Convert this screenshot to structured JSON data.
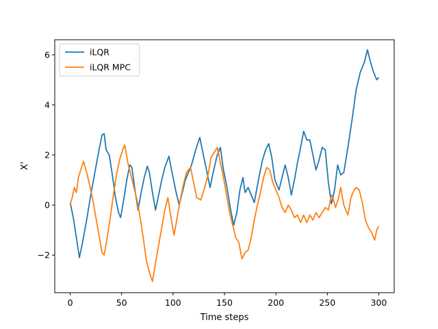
{
  "chart_data": {
    "type": "line",
    "title": "",
    "xlabel": "Time steps",
    "ylabel": "X'",
    "xlim": [
      -15,
      315
    ],
    "ylim": [
      -3.5,
      6.6
    ],
    "xticks": [
      0,
      50,
      100,
      150,
      200,
      250,
      300
    ],
    "yticks": [
      -2,
      0,
      2,
      4,
      6
    ],
    "xtick_labels": [
      "0",
      "50",
      "100",
      "150",
      "200",
      "250",
      "300"
    ],
    "ytick_labels": [
      "−2",
      "0",
      "2",
      "4",
      "6"
    ],
    "grid": false,
    "legend_position": "top-left",
    "series": [
      {
        "name": "iLQR",
        "color": "#1f77b4",
        "points": [
          [
            0,
            0.1
          ],
          [
            3,
            -0.5
          ],
          [
            6,
            -1.3
          ],
          [
            9,
            -2.1
          ],
          [
            12,
            -1.5
          ],
          [
            16,
            -0.6
          ],
          [
            20,
            0.4
          ],
          [
            24,
            1.3
          ],
          [
            28,
            2.2
          ],
          [
            31,
            2.8
          ],
          [
            33,
            2.85
          ],
          [
            35,
            2.2
          ],
          [
            38,
            2.0
          ],
          [
            41,
            1.2
          ],
          [
            44,
            0.3
          ],
          [
            47,
            -0.3
          ],
          [
            49,
            -0.5
          ],
          [
            52,
            0.2
          ],
          [
            55,
            1.0
          ],
          [
            58,
            1.6
          ],
          [
            60,
            1.5
          ],
          [
            63,
            0.6
          ],
          [
            66,
            -0.2
          ],
          [
            69,
            0.5
          ],
          [
            72,
            1.1
          ],
          [
            75,
            1.55
          ],
          [
            77,
            1.3
          ],
          [
            80,
            0.5
          ],
          [
            83,
            -0.2
          ],
          [
            86,
            0.4
          ],
          [
            89,
            1.0
          ],
          [
            92,
            1.5
          ],
          [
            96,
            1.95
          ],
          [
            99,
            1.3
          ],
          [
            103,
            0.5
          ],
          [
            106,
            0.0
          ],
          [
            109,
            0.5
          ],
          [
            112,
            1.0
          ],
          [
            115,
            1.3
          ],
          [
            118,
            1.6
          ],
          [
            122,
            2.2
          ],
          [
            126,
            2.7
          ],
          [
            129,
            2.1
          ],
          [
            133,
            1.3
          ],
          [
            136,
            0.7
          ],
          [
            139,
            1.3
          ],
          [
            143,
            2.0
          ],
          [
            146,
            2.3
          ],
          [
            149,
            1.4
          ],
          [
            152,
            0.8
          ],
          [
            156,
            -0.2
          ],
          [
            159,
            -0.8
          ],
          [
            162,
            -0.3
          ],
          [
            165,
            0.6
          ],
          [
            168,
            1.1
          ],
          [
            170,
            0.5
          ],
          [
            173,
            0.7
          ],
          [
            176,
            0.4
          ],
          [
            179,
            0.1
          ],
          [
            183,
            1.0
          ],
          [
            187,
            1.8
          ],
          [
            190,
            2.2
          ],
          [
            193,
            2.45
          ],
          [
            196,
            1.9
          ],
          [
            199,
            1.0
          ],
          [
            203,
            0.6
          ],
          [
            206,
            1.1
          ],
          [
            209,
            1.6
          ],
          [
            212,
            1.1
          ],
          [
            215,
            0.4
          ],
          [
            218,
            1.0
          ],
          [
            221,
            1.7
          ],
          [
            224,
            2.3
          ],
          [
            227,
            2.95
          ],
          [
            230,
            2.6
          ],
          [
            233,
            2.6
          ],
          [
            236,
            2.0
          ],
          [
            239,
            1.4
          ],
          [
            242,
            1.8
          ],
          [
            245,
            2.3
          ],
          [
            248,
            2.2
          ],
          [
            251,
            0.9
          ],
          [
            254,
            0.05
          ],
          [
            257,
            0.6
          ],
          [
            260,
            1.6
          ],
          [
            263,
            1.2
          ],
          [
            266,
            1.3
          ],
          [
            270,
            2.3
          ],
          [
            274,
            3.4
          ],
          [
            278,
            4.6
          ],
          [
            282,
            5.3
          ],
          [
            286,
            5.7
          ],
          [
            289,
            6.2
          ],
          [
            292,
            5.7
          ],
          [
            295,
            5.3
          ],
          [
            298,
            5.0
          ],
          [
            300,
            5.1
          ]
        ]
      },
      {
        "name": "iLQR MPC",
        "color": "#ff7f0e",
        "points": [
          [
            0,
            0.0
          ],
          [
            2,
            0.3
          ],
          [
            4,
            0.7
          ],
          [
            6,
            0.5
          ],
          [
            8,
            1.1
          ],
          [
            11,
            1.5
          ],
          [
            13,
            1.75
          ],
          [
            16,
            1.3
          ],
          [
            19,
            0.8
          ],
          [
            22,
            0.2
          ],
          [
            25,
            -0.5
          ],
          [
            28,
            -1.2
          ],
          [
            31,
            -1.9
          ],
          [
            33,
            -2.0
          ],
          [
            36,
            -1.3
          ],
          [
            39,
            -0.5
          ],
          [
            42,
            0.4
          ],
          [
            45,
            1.2
          ],
          [
            48,
            1.8
          ],
          [
            51,
            2.2
          ],
          [
            53,
            2.4
          ],
          [
            56,
            1.7
          ],
          [
            59,
            1.2
          ],
          [
            62,
            0.7
          ],
          [
            65,
            0.2
          ],
          [
            68,
            -0.5
          ],
          [
            71,
            -1.3
          ],
          [
            74,
            -2.2
          ],
          [
            77,
            -2.7
          ],
          [
            80,
            -3.05
          ],
          [
            83,
            -2.3
          ],
          [
            86,
            -1.6
          ],
          [
            89,
            -0.9
          ],
          [
            92,
            -0.2
          ],
          [
            95,
            0.3
          ],
          [
            98,
            -0.5
          ],
          [
            101,
            -1.2
          ],
          [
            104,
            -0.5
          ],
          [
            107,
            0.2
          ],
          [
            110,
            0.8
          ],
          [
            113,
            1.3
          ],
          [
            117,
            1.5
          ],
          [
            120,
            0.9
          ],
          [
            123,
            0.3
          ],
          [
            127,
            0.2
          ],
          [
            130,
            0.6
          ],
          [
            134,
            1.2
          ],
          [
            137,
            1.9
          ],
          [
            140,
            2.1
          ],
          [
            143,
            2.3
          ],
          [
            146,
            1.7
          ],
          [
            149,
            1.1
          ],
          [
            152,
            0.4
          ],
          [
            155,
            -0.3
          ],
          [
            158,
            -0.8
          ],
          [
            161,
            -1.3
          ],
          [
            164,
            -1.5
          ],
          [
            167,
            -2.15
          ],
          [
            170,
            -1.9
          ],
          [
            173,
            -1.8
          ],
          [
            176,
            -1.3
          ],
          [
            179,
            -0.6
          ],
          [
            182,
            0.0
          ],
          [
            185,
            0.5
          ],
          [
            188,
            1.1
          ],
          [
            191,
            1.5
          ],
          [
            194,
            1.4
          ],
          [
            197,
            0.9
          ],
          [
            200,
            0.6
          ],
          [
            203,
            0.3
          ],
          [
            206,
            -0.1
          ],
          [
            209,
            -0.3
          ],
          [
            212,
            0.0
          ],
          [
            215,
            -0.2
          ],
          [
            218,
            -0.5
          ],
          [
            221,
            -0.4
          ],
          [
            224,
            -0.7
          ],
          [
            227,
            -0.4
          ],
          [
            230,
            -0.7
          ],
          [
            233,
            -0.4
          ],
          [
            236,
            -0.6
          ],
          [
            239,
            -0.3
          ],
          [
            242,
            -0.5
          ],
          [
            245,
            -0.3
          ],
          [
            248,
            -0.1
          ],
          [
            251,
            -0.2
          ],
          [
            254,
            0.4
          ],
          [
            256,
            0.2
          ],
          [
            258,
            -0.1
          ],
          [
            261,
            0.3
          ],
          [
            263,
            0.7
          ],
          [
            266,
            0.0
          ],
          [
            270,
            -0.4
          ],
          [
            273,
            0.3
          ],
          [
            276,
            0.6
          ],
          [
            278,
            0.7
          ],
          [
            281,
            0.6
          ],
          [
            284,
            0.1
          ],
          [
            287,
            -0.6
          ],
          [
            290,
            -0.9
          ],
          [
            293,
            -1.1
          ],
          [
            296,
            -1.4
          ],
          [
            298,
            -1.0
          ],
          [
            300,
            -0.85
          ]
        ]
      }
    ]
  }
}
